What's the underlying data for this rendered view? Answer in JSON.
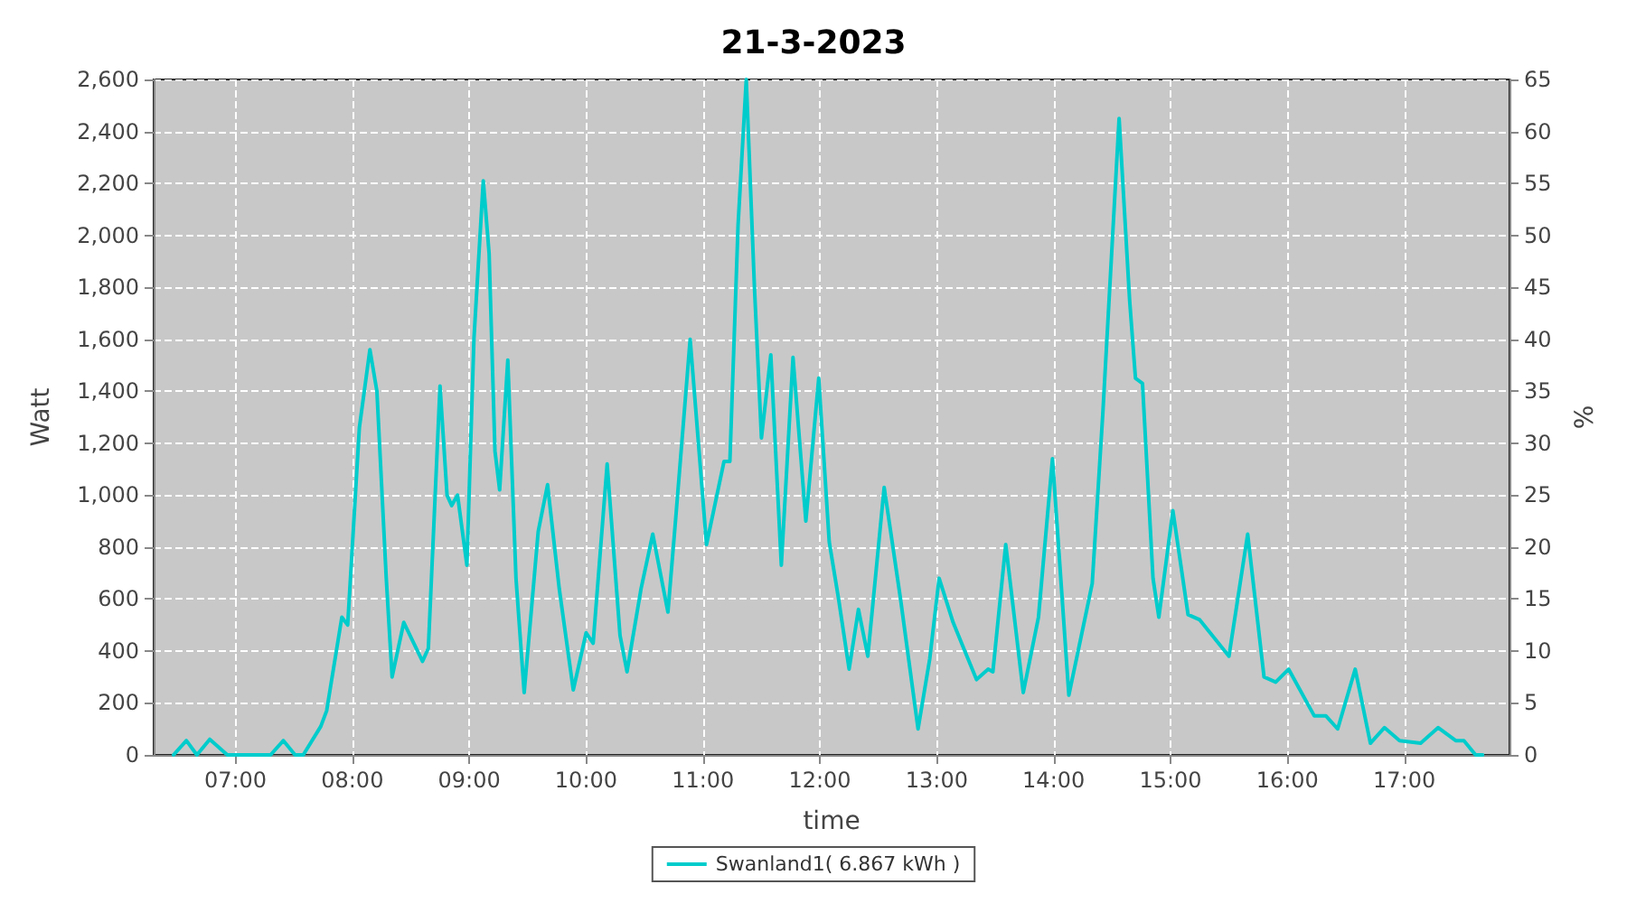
{
  "chart_data": {
    "type": "line",
    "title": "21-3-2023",
    "xlabel": "time",
    "ylabel": "Watt",
    "y2label": "%",
    "xlim": [
      6.3,
      17.9
    ],
    "xticks": [
      {
        "value": 7,
        "label": "07:00"
      },
      {
        "value": 8,
        "label": "08:00"
      },
      {
        "value": 9,
        "label": "09:00"
      },
      {
        "value": 10,
        "label": "10:00"
      },
      {
        "value": 11,
        "label": "11:00"
      },
      {
        "value": 12,
        "label": "12:00"
      },
      {
        "value": 13,
        "label": "13:00"
      },
      {
        "value": 14,
        "label": "14:00"
      },
      {
        "value": 15,
        "label": "15:00"
      },
      {
        "value": 16,
        "label": "16:00"
      },
      {
        "value": 17,
        "label": "17:00"
      }
    ],
    "ylim": [
      0,
      2600
    ],
    "yticks": [
      0,
      200,
      400,
      600,
      800,
      {
        "value": 1000,
        "label": "1,000"
      },
      {
        "value": 1200,
        "label": "1,200"
      },
      {
        "value": 1400,
        "label": "1,400"
      },
      {
        "value": 1600,
        "label": "1,600"
      },
      {
        "value": 1800,
        "label": "1,800"
      },
      {
        "value": 2000,
        "label": "2,000"
      },
      {
        "value": 2200,
        "label": "2,200"
      },
      {
        "value": 2400,
        "label": "2,400"
      },
      {
        "value": 2600,
        "label": "2,600"
      }
    ],
    "y2lim": [
      0,
      65
    ],
    "y2ticks": [
      0,
      5,
      10,
      15,
      20,
      25,
      30,
      35,
      40,
      45,
      50,
      55,
      60,
      65
    ],
    "grid": true,
    "legend": "bottom",
    "marker": "none",
    "line_style": "solid",
    "series": [
      {
        "name": "Swanland1( 6.867 kWh )",
        "color": "#00cccc",
        "x": [
          6.47,
          6.58,
          6.67,
          6.78,
          6.93,
          7.3,
          7.41,
          7.51,
          7.58,
          7.73,
          7.78,
          7.91,
          7.96,
          8.06,
          8.15,
          8.21,
          8.29,
          8.34,
          8.44,
          8.6,
          8.65,
          8.75,
          8.81,
          8.85,
          8.9,
          8.98,
          9.04,
          9.12,
          9.17,
          9.22,
          9.26,
          9.33,
          9.4,
          9.47,
          9.59,
          9.67,
          9.77,
          9.89,
          10.0,
          10.06,
          10.18,
          10.29,
          10.35,
          10.47,
          10.57,
          10.7,
          10.77,
          10.89,
          11.03,
          11.18,
          11.23,
          11.3,
          11.37,
          11.44,
          11.5,
          11.58,
          11.67,
          11.77,
          11.88,
          11.99,
          12.08,
          12.16,
          12.25,
          12.33,
          12.41,
          12.55,
          12.69,
          12.84,
          12.94,
          13.02,
          13.14,
          13.24,
          13.34,
          13.44,
          13.48,
          13.59,
          13.74,
          13.87,
          13.99,
          14.13,
          14.27,
          14.33,
          14.42,
          14.56,
          14.65,
          14.7,
          14.76,
          14.85,
          14.9,
          15.02,
          15.15,
          15.25,
          15.5,
          15.66,
          15.8,
          15.9,
          16.01,
          16.23,
          16.33,
          16.43,
          16.58,
          16.71,
          16.83,
          16.96,
          17.14,
          17.29,
          17.44,
          17.51,
          17.61,
          17.67
        ],
        "values": [
          0,
          55,
          0,
          60,
          0,
          0,
          55,
          0,
          0,
          110,
          170,
          530,
          500,
          1260,
          1560,
          1400,
          680,
          300,
          510,
          360,
          410,
          1420,
          1000,
          960,
          1000,
          730,
          1600,
          2210,
          1930,
          1170,
          1020,
          1520,
          680,
          240,
          860,
          1040,
          640,
          250,
          470,
          430,
          1120,
          460,
          320,
          640,
          850,
          550,
          930,
          1600,
          810,
          1130,
          1130,
          2040,
          2600,
          1800,
          1220,
          1540,
          730,
          1530,
          900,
          1450,
          820,
          600,
          330,
          560,
          380,
          1030,
          600,
          100,
          370,
          680,
          510,
          400,
          290,
          330,
          320,
          810,
          240,
          530,
          1140,
          230,
          530,
          660,
          1310,
          2450,
          1750,
          1450,
          1430,
          680,
          530,
          940,
          540,
          520,
          380,
          850,
          300,
          280,
          330,
          150,
          150,
          100,
          330,
          45,
          105,
          55,
          45,
          105,
          55,
          55,
          0,
          0
        ]
      }
    ]
  }
}
